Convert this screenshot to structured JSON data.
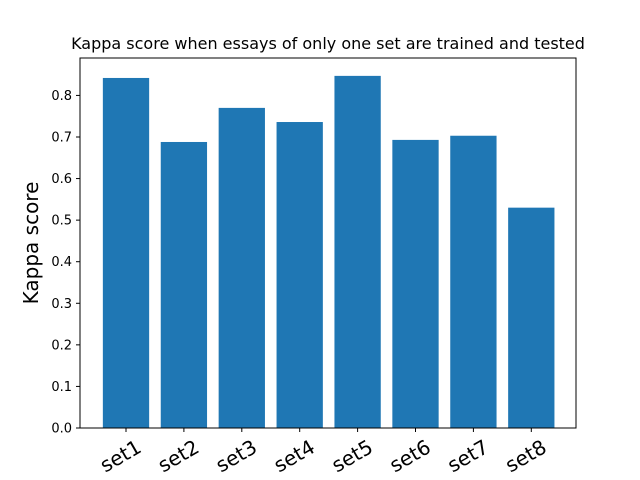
{
  "chart_data": {
    "type": "bar",
    "title": "Kappa score when essays of only one set are trained and tested",
    "xlabel": "",
    "ylabel": "Kappa score",
    "categories": [
      "set1",
      "set2",
      "set3",
      "set4",
      "set5",
      "set6",
      "set7",
      "set8"
    ],
    "values": [
      0.842,
      0.688,
      0.77,
      0.736,
      0.847,
      0.693,
      0.703,
      0.53
    ],
    "ylim": [
      0,
      0.89
    ],
    "yticks": [
      "0.0",
      "0.1",
      "0.2",
      "0.3",
      "0.4",
      "0.5",
      "0.6",
      "0.7",
      "0.8"
    ],
    "bar_color": "#1f77b4",
    "grid": false,
    "x_tick_rotation": 30
  }
}
